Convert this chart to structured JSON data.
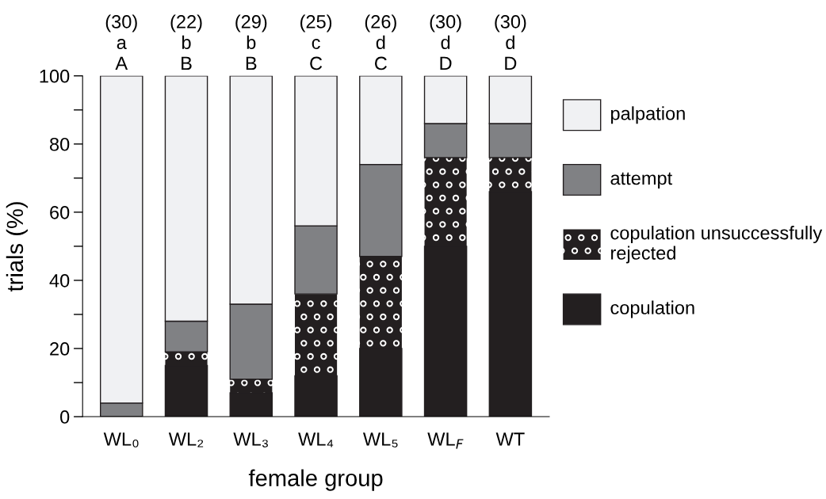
{
  "chart_data": {
    "type": "bar",
    "stacked": true,
    "xlabel": "female group",
    "ylabel": "trials (%)",
    "categories": [
      "WL₀",
      "WL₂",
      "WL₃",
      "WL₄",
      "WL₅",
      "WL$_{F}$",
      "WT"
    ],
    "series": [
      {
        "name": "copulation",
        "color": "#231f20",
        "values": [
          0,
          15,
          7,
          12,
          20,
          50,
          66
        ]
      },
      {
        "name": "copulation unsuccessfully rejected",
        "color": "#231f20",
        "marker": "circle",
        "values": [
          0,
          4,
          4,
          24,
          27,
          26,
          10
        ]
      },
      {
        "name": "attempt",
        "color": "#808184",
        "values": [
          4,
          9,
          22,
          20,
          27,
          10,
          10
        ]
      },
      {
        "name": "palpation",
        "color": "#f0f1f3",
        "values": [
          96,
          72,
          67,
          44,
          26,
          14,
          14
        ]
      }
    ],
    "ylim": [
      0,
      100
    ],
    "yticks": [
      0,
      {
        "value": 10,
        "label": null
      },
      20,
      {
        "value": 30,
        "label": null
      },
      40,
      {
        "value": 50,
        "label": null
      },
      60,
      {
        "value": 70,
        "label": null
      },
      80,
      {
        "value": 90,
        "label": null
      },
      100
    ],
    "annotations": [
      {
        "text": "(30)\na\nA",
        "x": "WL₀",
        "y": 100
      },
      {
        "text": "(22)\nb\nB",
        "x": "WL₂",
        "y": 100
      },
      {
        "text": "(29)\nb\nB",
        "x": "WL₃",
        "y": 100
      },
      {
        "text": "(25)\nc\nC",
        "x": "WL₄",
        "y": 100
      },
      {
        "text": "(26)\nd\nC",
        "x": "WL₅",
        "y": 100
      },
      {
        "text": "(30)\nd\nD",
        "x": "WL$_{F}$",
        "y": 100
      },
      {
        "text": "(30)\nd\nD",
        "x": "WT",
        "y": 100
      }
    ],
    "legend": "right",
    "grid": false
  }
}
